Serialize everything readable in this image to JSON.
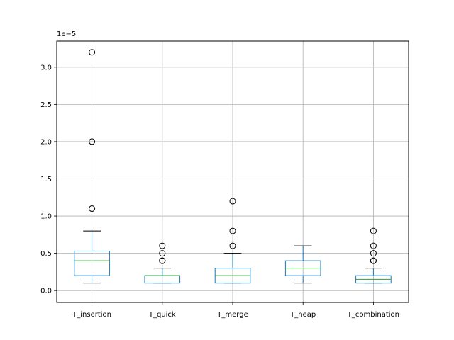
{
  "chart_data": {
    "type": "boxplot",
    "title": "",
    "xlabel": "",
    "ylabel": "",
    "y_scale_label": "1e−5",
    "ylim": [
      -0.16,
      3.35
    ],
    "yticks": [
      0.0,
      0.5,
      1.0,
      1.5,
      2.0,
      2.5,
      3.0
    ],
    "ytick_labels": [
      "0.0",
      "0.5",
      "1.0",
      "1.5",
      "2.0",
      "2.5",
      "3.0"
    ],
    "grid": true,
    "categories": [
      "T_insertion",
      "T_quick",
      "T_merge",
      "T_heap",
      "T_combination"
    ],
    "boxes": [
      {
        "whisker_low": 0.1,
        "q1": 0.2,
        "median": 0.4,
        "q3": 0.53,
        "whisker_high": 0.8,
        "outliers": [
          1.1,
          2.0,
          3.2
        ]
      },
      {
        "whisker_low": 0.1,
        "q1": 0.1,
        "median": 0.2,
        "q3": 0.2,
        "whisker_high": 0.3,
        "outliers": [
          0.4,
          0.4,
          0.4,
          0.5,
          0.6
        ]
      },
      {
        "whisker_low": 0.1,
        "q1": 0.1,
        "median": 0.2,
        "q3": 0.3,
        "whisker_high": 0.5,
        "outliers": [
          0.6,
          0.8,
          1.2
        ]
      },
      {
        "whisker_low": 0.1,
        "q1": 0.2,
        "median": 0.3,
        "q3": 0.4,
        "whisker_high": 0.6,
        "outliers": []
      },
      {
        "whisker_low": 0.1,
        "q1": 0.1,
        "median": 0.15,
        "q3": 0.2,
        "whisker_high": 0.3,
        "outliers": [
          0.4,
          0.4,
          0.5,
          0.6,
          0.8
        ]
      }
    ],
    "colors": {
      "box": "#1f77b4",
      "median": "#2ca02c",
      "whisker": "#000000",
      "grid": "#b0b0b0",
      "outlier": "#000000"
    }
  }
}
